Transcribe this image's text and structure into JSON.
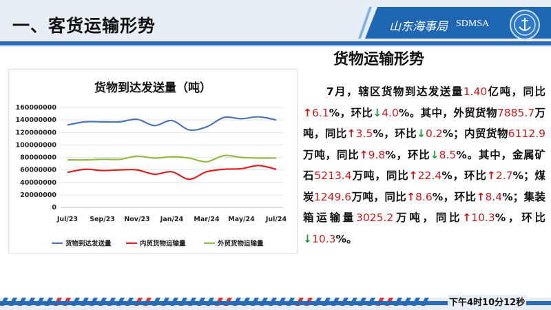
{
  "header": {
    "title": "一、客货运输形势",
    "brand_cn": "山东海事局",
    "brand_en": "SDMSA"
  },
  "side": {
    "title": "货物运输形势",
    "segments": [
      {
        "t": "　　7月，辖区货物到达发送量",
        "c": "text"
      },
      {
        "t": "1.40",
        "c": "num"
      },
      {
        "t": "亿吨，同比",
        "c": "text"
      },
      {
        "t": "↑",
        "c": "up"
      },
      {
        "t": "6.1",
        "c": "num"
      },
      {
        "t": "%，环比",
        "c": "text"
      },
      {
        "t": "↓",
        "c": "down"
      },
      {
        "t": "4.0",
        "c": "num"
      },
      {
        "t": "%。其中，外贸货物",
        "c": "text"
      },
      {
        "t": "7885.7",
        "c": "num"
      },
      {
        "t": "万吨，同比",
        "c": "text"
      },
      {
        "t": "↑",
        "c": "up"
      },
      {
        "t": "3.5",
        "c": "num"
      },
      {
        "t": "%，环比",
        "c": "text"
      },
      {
        "t": "↓",
        "c": "down"
      },
      {
        "t": "0.2",
        "c": "num"
      },
      {
        "t": "%；内贸货物",
        "c": "text"
      },
      {
        "t": "6112.9",
        "c": "num"
      },
      {
        "t": "万吨，同比",
        "c": "text"
      },
      {
        "t": "↑",
        "c": "up"
      },
      {
        "t": "9.8",
        "c": "num"
      },
      {
        "t": "%，环比",
        "c": "text"
      },
      {
        "t": "↓",
        "c": "down"
      },
      {
        "t": "8.5",
        "c": "num"
      },
      {
        "t": "%。其中，金属矿石",
        "c": "text"
      },
      {
        "t": "5213.4",
        "c": "num"
      },
      {
        "t": "万吨，同比",
        "c": "text"
      },
      {
        "t": "↑",
        "c": "up"
      },
      {
        "t": "22.4",
        "c": "num"
      },
      {
        "t": "%，环比",
        "c": "text"
      },
      {
        "t": "↑",
        "c": "up"
      },
      {
        "t": "2.7",
        "c": "num"
      },
      {
        "t": "%；煤炭",
        "c": "text"
      },
      {
        "t": "1249.6",
        "c": "num"
      },
      {
        "t": "万吨，同比",
        "c": "text"
      },
      {
        "t": "↑",
        "c": "up"
      },
      {
        "t": "8.6",
        "c": "num"
      },
      {
        "t": "%，环比",
        "c": "text"
      },
      {
        "t": "↑",
        "c": "up"
      },
      {
        "t": "8.4",
        "c": "num"
      },
      {
        "t": "%；集装箱运输量",
        "c": "text"
      },
      {
        "t": "3025.2",
        "c": "num"
      },
      {
        "t": "万吨，同比",
        "c": "text"
      },
      {
        "t": "↑",
        "c": "up"
      },
      {
        "t": "10.3",
        "c": "num"
      },
      {
        "t": "%，环比",
        "c": "text"
      },
      {
        "t": "↓",
        "c": "down"
      },
      {
        "t": "10.3",
        "c": "num"
      },
      {
        "t": "%。",
        "c": "text"
      }
    ]
  },
  "footer": {
    "time": "下午4时10分12秒"
  },
  "colors": {
    "up": "#d0191b",
    "down": "#1a9a3a",
    "total": "#4a76b4",
    "domestic": "#e01f1f",
    "foreign": "#8fbc45"
  },
  "chart_data": {
    "type": "line",
    "title": "货物到达发送量（吨）",
    "xlabel": "",
    "ylabel": "",
    "x_tick_labels": [
      "Jul/23",
      "Sep/23",
      "Nov/23",
      "Jan/24",
      "Mar/24",
      "May/24",
      "Jul/24"
    ],
    "ylim": [
      0,
      160000000
    ],
    "y_ticks": [
      "0",
      "20000000",
      "40000000",
      "60000000",
      "80000000",
      "100000000",
      "120000000",
      "140000000",
      "160000000"
    ],
    "legend_position": "bottom",
    "grid": true,
    "categories": [
      "Jul/23",
      "Aug/23",
      "Sep/23",
      "Oct/23",
      "Nov/23",
      "Dec/23",
      "Jan/24",
      "Feb/24",
      "Mar/24",
      "Apr/24",
      "May/24",
      "Jun/24",
      "Jul/24"
    ],
    "series": [
      {
        "name": "货物到达发送量",
        "color": "#4a76b4",
        "values": [
          132000000,
          137000000,
          137000000,
          137000000,
          141000000,
          131000000,
          139000000,
          124000000,
          129000000,
          144000000,
          142000000,
          145000000,
          140000000
        ]
      },
      {
        "name": "内贸货物运输量",
        "color": "#e01f1f",
        "values": [
          56000000,
          61000000,
          59000000,
          60000000,
          60000000,
          53000000,
          57000000,
          45000000,
          57000000,
          61000000,
          62000000,
          67000000,
          61000000
        ]
      },
      {
        "name": "外贸货物运输量",
        "color": "#8fbc45",
        "values": [
          76000000,
          76000000,
          77000000,
          77000000,
          82000000,
          79000000,
          81000000,
          79000000,
          73000000,
          83000000,
          80000000,
          79000000,
          79000000
        ]
      }
    ]
  }
}
